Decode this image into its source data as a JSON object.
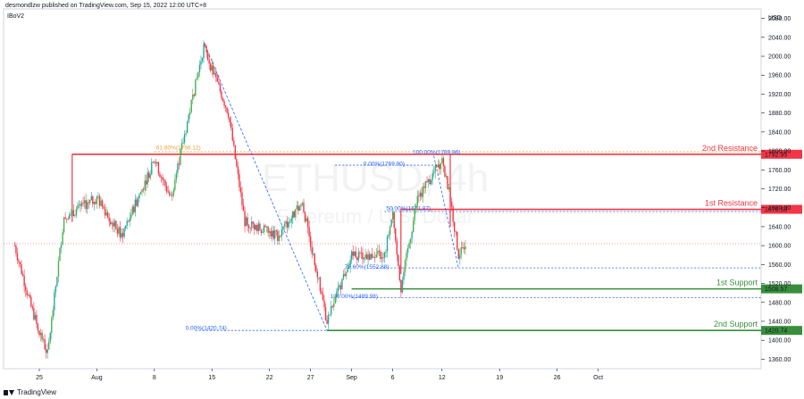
{
  "header": {
    "publisher": "desmondlzw published on TradingView.com, Sep 15, 2022 12:00 UTC+8",
    "indicator": "IBoV2",
    "brand": "TradingView"
  },
  "watermark": {
    "symbol": "ETHUSD, 4h",
    "description": "Ethereum / U.S. Dollar"
  },
  "chart_data": {
    "type": "candlestick",
    "currency": "USD",
    "ylim": [
      1340,
      2100
    ],
    "y_ticks": [
      1360,
      1400,
      1440,
      1480,
      1520,
      1560,
      1600,
      1640,
      1680,
      1720,
      1760,
      1800,
      1840,
      1880,
      1920,
      1960,
      2000,
      2040,
      2080
    ],
    "x_ticks": [
      "25",
      "Aug",
      "8",
      "15",
      "22",
      "27",
      "Sep",
      "6",
      "12",
      "19",
      "26",
      "Oct"
    ],
    "price_path": [
      {
        "x": "Jul 22",
        "price": 1600
      },
      {
        "x": "Jul 24",
        "price": 1470
      },
      {
        "x": "Jul 26",
        "price": 1370
      },
      {
        "x": "Jul 28",
        "price": 1660
      },
      {
        "x": "Aug 1",
        "price": 1700
      },
      {
        "x": "Aug 4",
        "price": 1620
      },
      {
        "x": "Aug 8",
        "price": 1780
      },
      {
        "x": "Aug 10",
        "price": 1700
      },
      {
        "x": "Aug 14",
        "price": 2020
      },
      {
        "x": "Aug 17",
        "price": 1880
      },
      {
        "x": "Aug 19",
        "price": 1650
      },
      {
        "x": "Aug 23",
        "price": 1620
      },
      {
        "x": "Aug 26",
        "price": 1690
      },
      {
        "x": "Aug 29",
        "price": 1440
      },
      {
        "x": "Sep 1",
        "price": 1580
      },
      {
        "x": "Sep 5",
        "price": 1580
      },
      {
        "x": "Sep 6",
        "price": 1670
      },
      {
        "x": "Sep 7",
        "price": 1510
      },
      {
        "x": "Sep 9",
        "price": 1700
      },
      {
        "x": "Sep 12",
        "price": 1780
      },
      {
        "x": "Sep 13",
        "price": 1700
      },
      {
        "x": "Sep 14",
        "price": 1580
      },
      {
        "x": "Sep 15",
        "price": 1612
      }
    ],
    "levels": [
      {
        "name": "2nd Resistance",
        "value": 1792.95,
        "label": "1792.95",
        "color": "#f23645"
      },
      {
        "name": "1st Resistance",
        "value": 1676.58,
        "label": "1676.58",
        "color": "#f23645"
      },
      {
        "name": "1st Support",
        "value": 1508.57,
        "label": "1508.57",
        "color": "#388e3c"
      },
      {
        "name": "2nd Support",
        "value": 1420.74,
        "label": "1420.74",
        "color": "#388e3c"
      }
    ],
    "current_price": 1604,
    "fib_labels": [
      {
        "text": "61.80%(1798.12)",
        "color": "#e9a23b"
      },
      {
        "text": "100.00%(1789.86)",
        "color": "#2962ff"
      },
      {
        "text": "0.00%(1769.90)",
        "color": "#2962ff"
      },
      {
        "text": "50.00%(1671.87)",
        "color": "#2962ff"
      },
      {
        "text": "78.60%(1552.88)",
        "color": "#2962ff"
      },
      {
        "text": "100.00%(1489.98)",
        "color": "#2962ff"
      },
      {
        "text": "0.00%(1420.74)",
        "color": "#2962ff"
      }
    ],
    "colors": {
      "up": "#26a69a",
      "up_alt": "#4caf50",
      "down": "#f23645",
      "resistance": "#f23645",
      "support": "#388e3c",
      "fib": "#2962ff",
      "fib_alt": "#e9a23b"
    }
  }
}
